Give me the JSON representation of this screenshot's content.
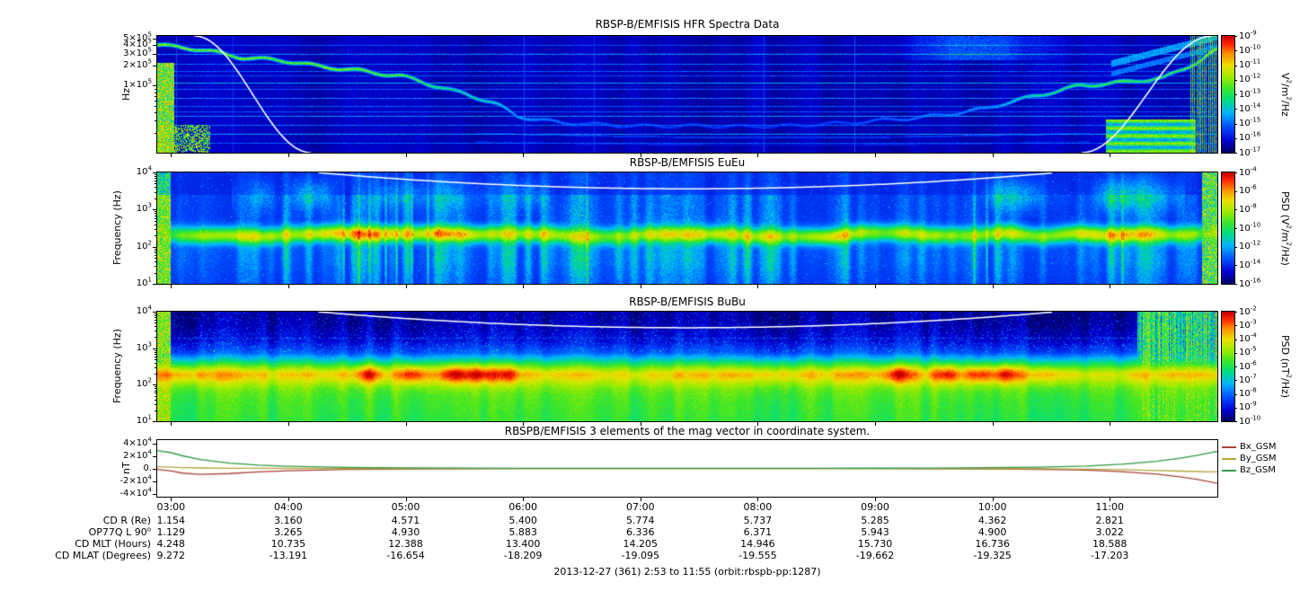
{
  "caption": "2013-12-27 (361) 2:53 to 11:55 (orbit:rbspb-pp:1287)",
  "xaxis": {
    "start_hour": 2.883,
    "end_hour": 11.917,
    "ticks": [
      {
        "hour": 3,
        "label": "03:00"
      },
      {
        "hour": 4,
        "label": "04:00"
      },
      {
        "hour": 5,
        "label": "05:00"
      },
      {
        "hour": 6,
        "label": "06:00"
      },
      {
        "hour": 7,
        "label": "07:00"
      },
      {
        "hour": 8,
        "label": "08:00"
      },
      {
        "hour": 9,
        "label": "09:00"
      },
      {
        "hour": 10,
        "label": "10:00"
      },
      {
        "hour": 11,
        "label": "11:00"
      }
    ]
  },
  "table": {
    "rows": [
      {
        "label": "CD R (Re)",
        "values": [
          "1.154",
          "3.160",
          "4.571",
          "5.400",
          "5.774",
          "5.737",
          "5.285",
          "4.362",
          "2.821"
        ]
      },
      {
        "label": "OP77Q L 90^o",
        "values": [
          "1.129",
          "3.265",
          "4.930",
          "5.883",
          "6.336",
          "6.371",
          "5.943",
          "4.900",
          "3.022"
        ]
      },
      {
        "label": "CD MLT (Hours)",
        "values": [
          "4.248",
          "10.735",
          "12.388",
          "13.400",
          "14.205",
          "14.946",
          "15.730",
          "16.736",
          "18.588"
        ]
      },
      {
        "label": "CD MLAT (Degrees)",
        "values": [
          "9.272",
          "-13.191",
          "-16.654",
          "-18.209",
          "-19.095",
          "-19.555",
          "-19.662",
          "-19.325",
          "-17.203"
        ]
      }
    ]
  },
  "chart_data": [
    {
      "id": "hfr",
      "type": "heatmap",
      "title": "RBSP-B/EMFISIS  HFR Spectra Data",
      "ylabel": "Hz",
      "yscale": "log",
      "ymin_log": 4.0,
      "ymax_log": 5.74,
      "yticks": [
        {
          "label": "5×10^5",
          "logf": 5.699
        },
        {
          "label": "4×10^5",
          "logf": 5.602
        },
        {
          "label": "3×10^5",
          "logf": 5.477
        },
        {
          "label": "2×10^5",
          "logf": 5.301
        },
        {
          "label": "1×10^5",
          "logf": 5.0
        }
      ],
      "colorbar": {
        "unit": "V^2/m^2/Hz",
        "scale": "log",
        "tick_labels": [
          "10^-9",
          "10^-10",
          "10^-11",
          "10^-12",
          "10^-13",
          "10^-14",
          "10^-15",
          "10^-16",
          "10^-17"
        ]
      },
      "features": {
        "interference_lines": [
          {
            "logf": 5.6,
            "amp": 0.22
          },
          {
            "logf": 5.47,
            "amp": 0.3
          },
          {
            "logf": 5.33,
            "amp": 0.26
          },
          {
            "logf": 5.22,
            "amp": 0.24
          },
          {
            "logf": 5.15,
            "amp": 0.22
          },
          {
            "logf": 5.05,
            "amp": 0.34
          },
          {
            "logf": 4.95,
            "amp": 0.24
          },
          {
            "logf": 4.82,
            "amp": 0.28
          },
          {
            "logf": 4.7,
            "amp": 0.24
          },
          {
            "logf": 4.62,
            "amp": 0.22
          },
          {
            "logf": 4.55,
            "amp": 0.3
          },
          {
            "logf": 4.42,
            "amp": 0.26
          },
          {
            "logf": 4.28,
            "amp": 0.32
          },
          {
            "logf": 4.15,
            "amp": 0.24
          }
        ],
        "uhr_trace": {
          "x": [
            0,
            0.03,
            0.07,
            0.11,
            0.15,
            0.19,
            0.23,
            0.26,
            0.29,
            0.32,
            0.34,
            0.38,
            0.45,
            0.55,
            0.65,
            0.72,
            0.78,
            0.83,
            0.87,
            0.91,
            0.95,
            0.98,
            1.0
          ],
          "logf": [
            5.62,
            5.55,
            5.46,
            5.38,
            5.3,
            5.24,
            5.15,
            5.02,
            4.9,
            4.72,
            4.55,
            4.47,
            4.42,
            4.4,
            4.45,
            4.52,
            4.65,
            4.85,
            5.0,
            5.05,
            5.12,
            5.35,
            5.55
          ],
          "amp": [
            0.65,
            0.6,
            0.62,
            0.58,
            0.6,
            0.62,
            0.55,
            0.5,
            0.45,
            0.4,
            0.32,
            0.25,
            0.2,
            0.18,
            0.2,
            0.25,
            0.3,
            0.45,
            0.5,
            0.55,
            0.5,
            0.55,
            0.6
          ]
        },
        "white_curve": {
          "left": {
            "x0": 0.035,
            "x1": 0.145
          },
          "right": {
            "x0": 0.872,
            "x1": 0.995
          }
        }
      }
    },
    {
      "id": "euu",
      "type": "heatmap",
      "title": "RBSP-B/EMFISIS  EuEu",
      "ylabel": "Frequency (Hz)",
      "yscale": "log",
      "ymin_log": 1.0,
      "ymax_log": 4.0,
      "yticks": [
        {
          "label": "10^4",
          "logf": 4
        },
        {
          "label": "10^3",
          "logf": 3
        },
        {
          "label": "10^2",
          "logf": 2
        },
        {
          "label": "10^1",
          "logf": 1
        }
      ],
      "colorbar": {
        "unit": "PSD (V^2/m^2/Hz)",
        "scale": "log",
        "tick_labels": [
          "10^-4",
          "10^-6",
          "10^-8",
          "10^-10",
          "10^-12",
          "10^-14",
          "10^-16"
        ]
      },
      "features": {
        "band": {
          "center_logf": 2.33,
          "width_dex": 0.22,
          "amp_x": [
            0,
            0.04,
            0.1,
            0.18,
            0.27,
            0.35,
            0.45,
            0.55,
            0.63,
            0.7,
            0.78,
            0.85,
            0.92,
            0.97,
            1
          ],
          "amp": [
            0.25,
            0.38,
            0.45,
            0.52,
            0.5,
            0.4,
            0.42,
            0.44,
            0.5,
            0.46,
            0.42,
            0.5,
            0.52,
            0.45,
            0.3
          ]
        },
        "white_curve": {
          "x0": 0.152,
          "x1": 0.848,
          "min_logf": 3.56
        },
        "spikes": [
          0.175,
          0.19,
          0.2,
          0.215,
          0.225,
          0.24,
          0.255,
          0.405,
          0.77,
          0.782,
          0.91
        ]
      }
    },
    {
      "id": "bubu",
      "type": "heatmap",
      "title": "RBSP-B/EMFISIS  BuBu",
      "ylabel": "Frequency (Hz)",
      "yscale": "log",
      "ymin_log": 1.0,
      "ymax_log": 4.0,
      "yticks": [
        {
          "label": "10^4",
          "logf": 4
        },
        {
          "label": "10^3",
          "logf": 3
        },
        {
          "label": "10^2",
          "logf": 2
        },
        {
          "label": "10^1",
          "logf": 1
        }
      ],
      "colorbar": {
        "unit": "PSD (nT^2/Hz)",
        "scale": "log",
        "tick_labels": [
          "10^-2",
          "10^-3",
          "10^-4",
          "10^-5",
          "10^-6",
          "10^-7",
          "10^-8",
          "10^-9",
          "10^-10"
        ]
      },
      "features": {
        "base_profile": {
          "logf": [
            1.0,
            1.6,
            2.0,
            2.3,
            2.6,
            2.9,
            3.2,
            3.6,
            4.0
          ],
          "v": [
            0.52,
            0.55,
            0.6,
            0.62,
            0.45,
            0.22,
            0.12,
            0.07,
            0.05
          ]
        },
        "band_blobs": {
          "x": [
            0.2,
            0.24,
            0.28,
            0.305,
            0.33,
            0.7,
            0.745,
            0.775,
            0.8
          ],
          "logf": 2.3,
          "amp": 0.2
        },
        "white_curve": {
          "x0": 0.152,
          "x1": 0.848,
          "min_logf": 3.56
        },
        "right_noise_x": 0.925
      }
    },
    {
      "id": "mag",
      "type": "line",
      "title": "RBSPB/EMFISIS  3 elements of the mag vector in coordinate system.",
      "ylabel": "nT",
      "ylim": [
        -45000,
        45000
      ],
      "yticks": [
        {
          "label": "4×10^4",
          "value": 40000
        },
        {
          "label": "2×10^4",
          "value": 20000
        },
        {
          "label": "0.",
          "value": 0
        },
        {
          "label": "-2×10^4",
          "value": -20000
        },
        {
          "label": "-4×10^4",
          "value": -40000
        }
      ],
      "series": [
        {
          "name": "Bx_GSM",
          "color": "#aa4439",
          "x": [
            2.883,
            3.0,
            3.1,
            3.25,
            3.5,
            3.75,
            4.0,
            4.5,
            5.0,
            5.5,
            6.0,
            6.5,
            7.0,
            7.5,
            8.0,
            8.5,
            9.0,
            9.5,
            10.0,
            10.4,
            10.8,
            11.1,
            11.4,
            11.6,
            11.75,
            11.85,
            11.92
          ],
          "y": [
            -1500,
            -4000,
            -7500,
            -9500,
            -8200,
            -5600,
            -3700,
            -1700,
            -900,
            -500,
            -300,
            -200,
            -160,
            -140,
            -150,
            -190,
            -260,
            -430,
            -800,
            -1400,
            -2800,
            -5200,
            -9200,
            -13500,
            -17800,
            -21200,
            -23800
          ]
        },
        {
          "name": "By_GSM",
          "color": "#b3a63d",
          "x": [
            2.883,
            3.0,
            3.1,
            3.25,
            3.5,
            3.75,
            4.0,
            4.5,
            5.0,
            5.5,
            6.0,
            6.5,
            7.0,
            7.5,
            8.0,
            8.5,
            9.0,
            9.5,
            10.0,
            10.4,
            10.8,
            11.1,
            11.4,
            11.6,
            11.75,
            11.85,
            11.92
          ],
          "y": [
            2600,
            1900,
            1200,
            700,
            300,
            100,
            0,
            -60,
            -80,
            -80,
            -70,
            -60,
            -55,
            -50,
            -60,
            -80,
            -110,
            -180,
            -350,
            -650,
            -1200,
            -2100,
            -3300,
            -4300,
            -5000,
            -5400,
            -5600
          ]
        },
        {
          "name": "Bz_GSM",
          "color": "#339944",
          "x": [
            2.883,
            3.0,
            3.1,
            3.25,
            3.5,
            3.75,
            4.0,
            4.5,
            5.0,
            5.5,
            6.0,
            6.5,
            7.0,
            7.5,
            8.0,
            8.5,
            9.0,
            9.5,
            10.0,
            10.4,
            10.8,
            11.1,
            11.4,
            11.6,
            11.75,
            11.85,
            11.92
          ],
          "y": [
            28500,
            25000,
            20000,
            14000,
            8500,
            5300,
            3400,
            1500,
            800,
            450,
            280,
            200,
            165,
            150,
            170,
            230,
            360,
            620,
            1150,
            1950,
            3700,
            6600,
            11200,
            16200,
            21000,
            24800,
            27300
          ]
        }
      ]
    }
  ]
}
